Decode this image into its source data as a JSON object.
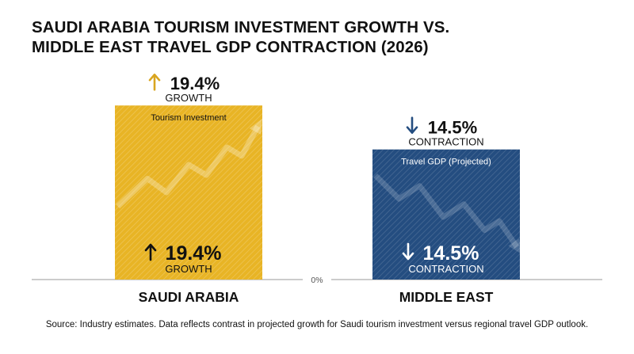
{
  "title_lines": [
    "SAUDI ARABIA TOURISM INVESTMENT GROWTH VS.",
    "MIDDLE EAST TRAVEL GDP CONTRACTION (2026)"
  ],
  "source": "Source: Industry estimates. Data reflects contrast in projected growth for Saudi tourism investment versus regional travel GDP outlook.",
  "chart_data": {
    "type": "bar",
    "title": "SAUDI ARABIA TOURISM INVESTMENT GROWTH VS. MIDDLE EAST TRAVEL GDP CONTRACTION (2026)",
    "categories": [
      "SAUDI ARABIA",
      "MIDDLE EAST"
    ],
    "values": [
      19.4,
      -14.5
    ],
    "magnitudes": [
      19.4,
      14.5
    ],
    "zero_label": "0%",
    "grid": false,
    "bars": [
      {
        "category": "SAUDI ARABIA",
        "value": 19.4,
        "series": "Tourism Investment",
        "value_label": "19.4%",
        "caption": "GROWTH",
        "direction": "up",
        "color": "#E8B425",
        "text_color": "#111111",
        "arrow_color": "#D9A520"
      },
      {
        "category": "MIDDLE EAST",
        "value": -14.5,
        "series": "Travel GDP (Projected)",
        "value_label": "14.5%",
        "caption": "CONTRACTION",
        "direction": "down",
        "color": "#244D80",
        "text_color": "#ffffff",
        "arrow_color": "#244D80"
      }
    ]
  }
}
